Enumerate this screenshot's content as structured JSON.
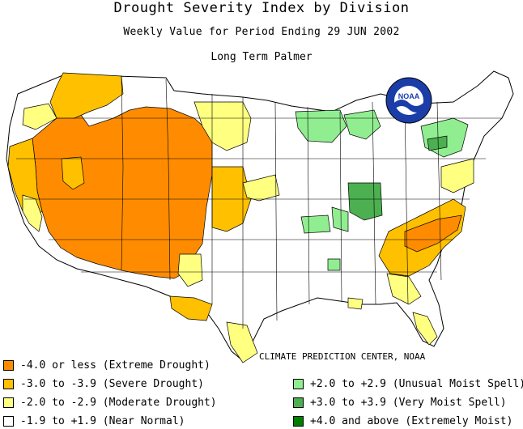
{
  "title": "Drought Severity Index by Division",
  "subtitle": "Weekly Value for Period Ending 29 JUN 2002",
  "index_name": "Long Term Palmer",
  "credit": "CLIMATE PREDICTION CENTER, NOAA",
  "logo_text": "NOAA",
  "colors": {
    "extreme_drought": "#ff8c00",
    "severe_drought": "#ffc000",
    "moderate_drought": "#ffff80",
    "near_normal": "#ffffff",
    "unusual_moist": "#90ee90",
    "very_moist": "#4caf50",
    "extremely_moist": "#008000",
    "outline": "#000000"
  },
  "legend": {
    "left": [
      {
        "label": "-4.0 or less (Extreme Drought)",
        "color": "#ff8c00"
      },
      {
        "label": "-3.0 to -3.9 (Severe Drought)",
        "color": "#ffc000"
      },
      {
        "label": "-2.0 to -2.9 (Moderate Drought)",
        "color": "#ffff80"
      },
      {
        "label": "-1.9 to +1.9 (Near Normal)",
        "color": "#ffffff"
      }
    ],
    "right": [
      {
        "label": "+2.0 to +2.9 (Unusual Moist Spell)",
        "color": "#90ee90"
      },
      {
        "label": "+3.0 to +3.9 (Very Moist Spell)",
        "color": "#4caf50"
      },
      {
        "label": "+4.0 and above (Extremely Moist)",
        "color": "#008000"
      }
    ]
  }
}
